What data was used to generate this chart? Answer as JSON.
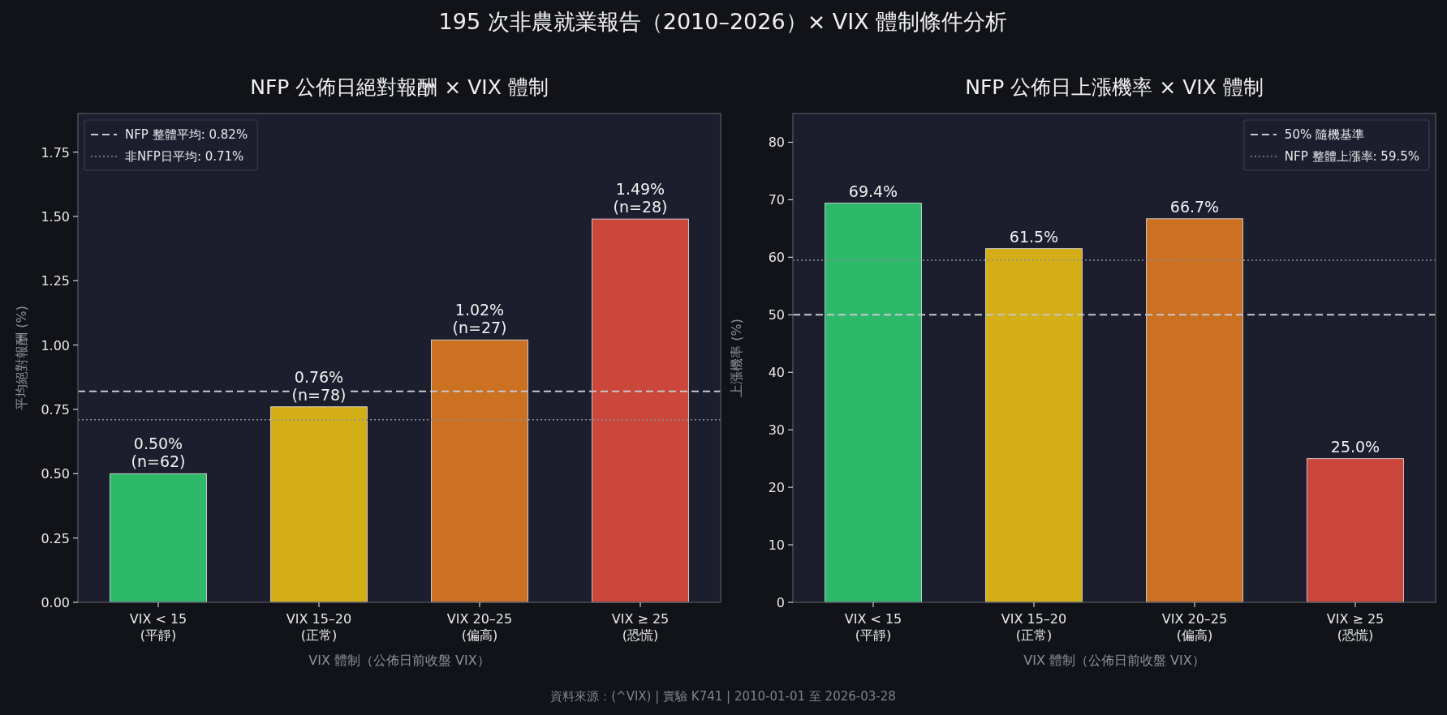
{
  "chart_data": [
    {
      "type": "bar",
      "title": "NFP 公佈日絕對報酬 × VIX 體制",
      "xlabel": "VIX 體制（公佈日前收盤 VIX）",
      "ylabel": "平均絕對報酬 (%)",
      "categories": [
        "VIX < 15\n(平靜)",
        "VIX 15–20\n(正常)",
        "VIX 20–25\n(偏高)",
        "VIX ≥ 25\n(恐慌)"
      ],
      "values": [
        0.5,
        0.76,
        1.02,
        1.49
      ],
      "colors": [
        "#2eb86a",
        "#d4ae16",
        "#cc7022",
        "#cc473b"
      ],
      "value_labels": [
        "0.50%\n(n=62)",
        "0.76%\n(n=78)",
        "1.02%\n(n=27)",
        "1.49%\n(n=28)"
      ],
      "ylim": [
        0,
        1.9
      ],
      "yticks": [
        {
          "value": 0,
          "label": "0.00"
        },
        {
          "value": 0.25,
          "label": "0.25"
        },
        {
          "value": 0.5,
          "label": "0.50"
        },
        {
          "value": 0.75,
          "label": "0.75"
        },
        {
          "value": 1,
          "label": "1.00"
        },
        {
          "value": 1.25,
          "label": "1.25"
        },
        {
          "value": 1.5,
          "label": "1.50"
        },
        {
          "value": 1.75,
          "label": "1.75"
        }
      ],
      "ref_lines": [
        {
          "axis": "y",
          "value": 0.82,
          "label": "NFP 整體平均: 0.82%",
          "color": "#c8c8d0",
          "line_style": "dashed"
        },
        {
          "axis": "y",
          "value": 0.71,
          "label": "非NFP日平均: 0.71%",
          "color": "#8a8c96",
          "line_style": "dotted"
        }
      ],
      "legend": "top left",
      "annotations": [
        "195 次非農就業報告（2010–2026）× VIX 體制條件分析"
      ]
    },
    {
      "type": "bar",
      "title": "NFP 公佈日上漲機率 × VIX 體制",
      "xlabel": "VIX 體制（公佈日前收盤 VIX）",
      "ylabel": "上漲機率 (%)",
      "categories": [
        "VIX < 15\n(平靜)",
        "VIX 15–20\n(正常)",
        "VIX 20–25\n(偏高)",
        "VIX ≥ 25\n(恐慌)"
      ],
      "values": [
        69.4,
        61.5,
        66.7,
        25.0
      ],
      "colors": [
        "#2eb86a",
        "#d4ae16",
        "#cc7022",
        "#cc473b"
      ],
      "value_labels": [
        "69.4%",
        "61.5%",
        "66.7%",
        "25.0%"
      ],
      "ylim": [
        0,
        85
      ],
      "yticks": [
        0,
        10,
        20,
        30,
        40,
        50,
        60,
        70,
        80
      ],
      "ref_lines": [
        {
          "axis": "y",
          "value": 50,
          "label": "50% 隨機基準",
          "color": "#c8c8d0",
          "line_style": "dashed"
        },
        {
          "axis": "y",
          "value": 59.5,
          "label": "NFP 整體上漲率: 59.5%",
          "color": "#8a8c96",
          "line_style": "dotted"
        }
      ],
      "legend": "top right",
      "annotations": [
        "資料來源：(^VIX) | 實驗 K741 | 2010-01-01 至 2026-03-28"
      ]
    }
  ]
}
